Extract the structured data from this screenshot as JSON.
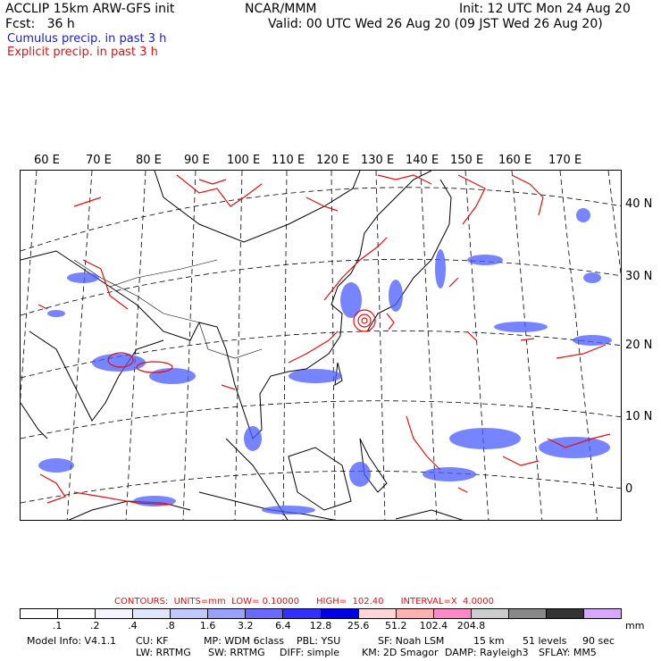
{
  "header": {
    "model": "ACCLIP 15km ARW-GFS init",
    "org": "NCAR/MMM",
    "init": "Init: 12 UTC Mon 24 Aug 20",
    "fcst": "Fcst:   36 h",
    "valid": "Valid: 00 UTC Wed 26 Aug 20 (09 JST Wed 26 Aug 20)",
    "legend_blue": "Cumulus precip. in past 3 h",
    "legend_red": "Explicit precip. in past 3 h"
  },
  "map": {
    "lon_labels": [
      "60 E",
      "70 E",
      "80 E",
      "90 E",
      "100 E",
      "110 E",
      "120 E",
      "130 E",
      "140 E",
      "150 E",
      "160 E",
      "170 E"
    ],
    "lat_labels": [
      "40 N",
      "30 N",
      "20 N",
      "10 N",
      "0"
    ],
    "colors": {
      "cumulus": "#4040ff",
      "explicit": "#e01010",
      "coast": "#000000",
      "grid": "#000000"
    }
  },
  "contours": {
    "text": "CONTOURS:  UNITS=mm  LOW= 0.10000      HIGH=  102.40      INTERVAL=X  4.0000"
  },
  "colorbar": {
    "colors": [
      "#ffffff",
      "#ffffff",
      "#f4f4ff",
      "#e0e6ff",
      "#c0c8ff",
      "#9aa0ff",
      "#6a6aff",
      "#3030ff",
      "#0000e6",
      "#ffd6d6",
      "#ffb0b0",
      "#ff88c8",
      "#cccccc",
      "#888888",
      "#333333",
      "#d8a8ff"
    ],
    "ticks": [
      ".1",
      ".2",
      ".4",
      ".8",
      "1.6",
      "3.2",
      "6.4",
      "12.8",
      "25.6",
      "51.2",
      "102.4",
      "204.8"
    ],
    "unit": "mm"
  },
  "model_info": {
    "line1": [
      "Model Info: V4.1.1",
      "CU: KF",
      "MP: WDM 6class",
      "PBL: YSU",
      "SF: Noah LSM",
      "15 km",
      "51 levels",
      "90 sec"
    ],
    "line2": [
      "LW: RRTMG",
      "SW: RRTMG",
      "DIFF: simple",
      "KM: 2D Smagor",
      "DAMP: Rayleigh3",
      "SFLAY: MM5"
    ]
  }
}
